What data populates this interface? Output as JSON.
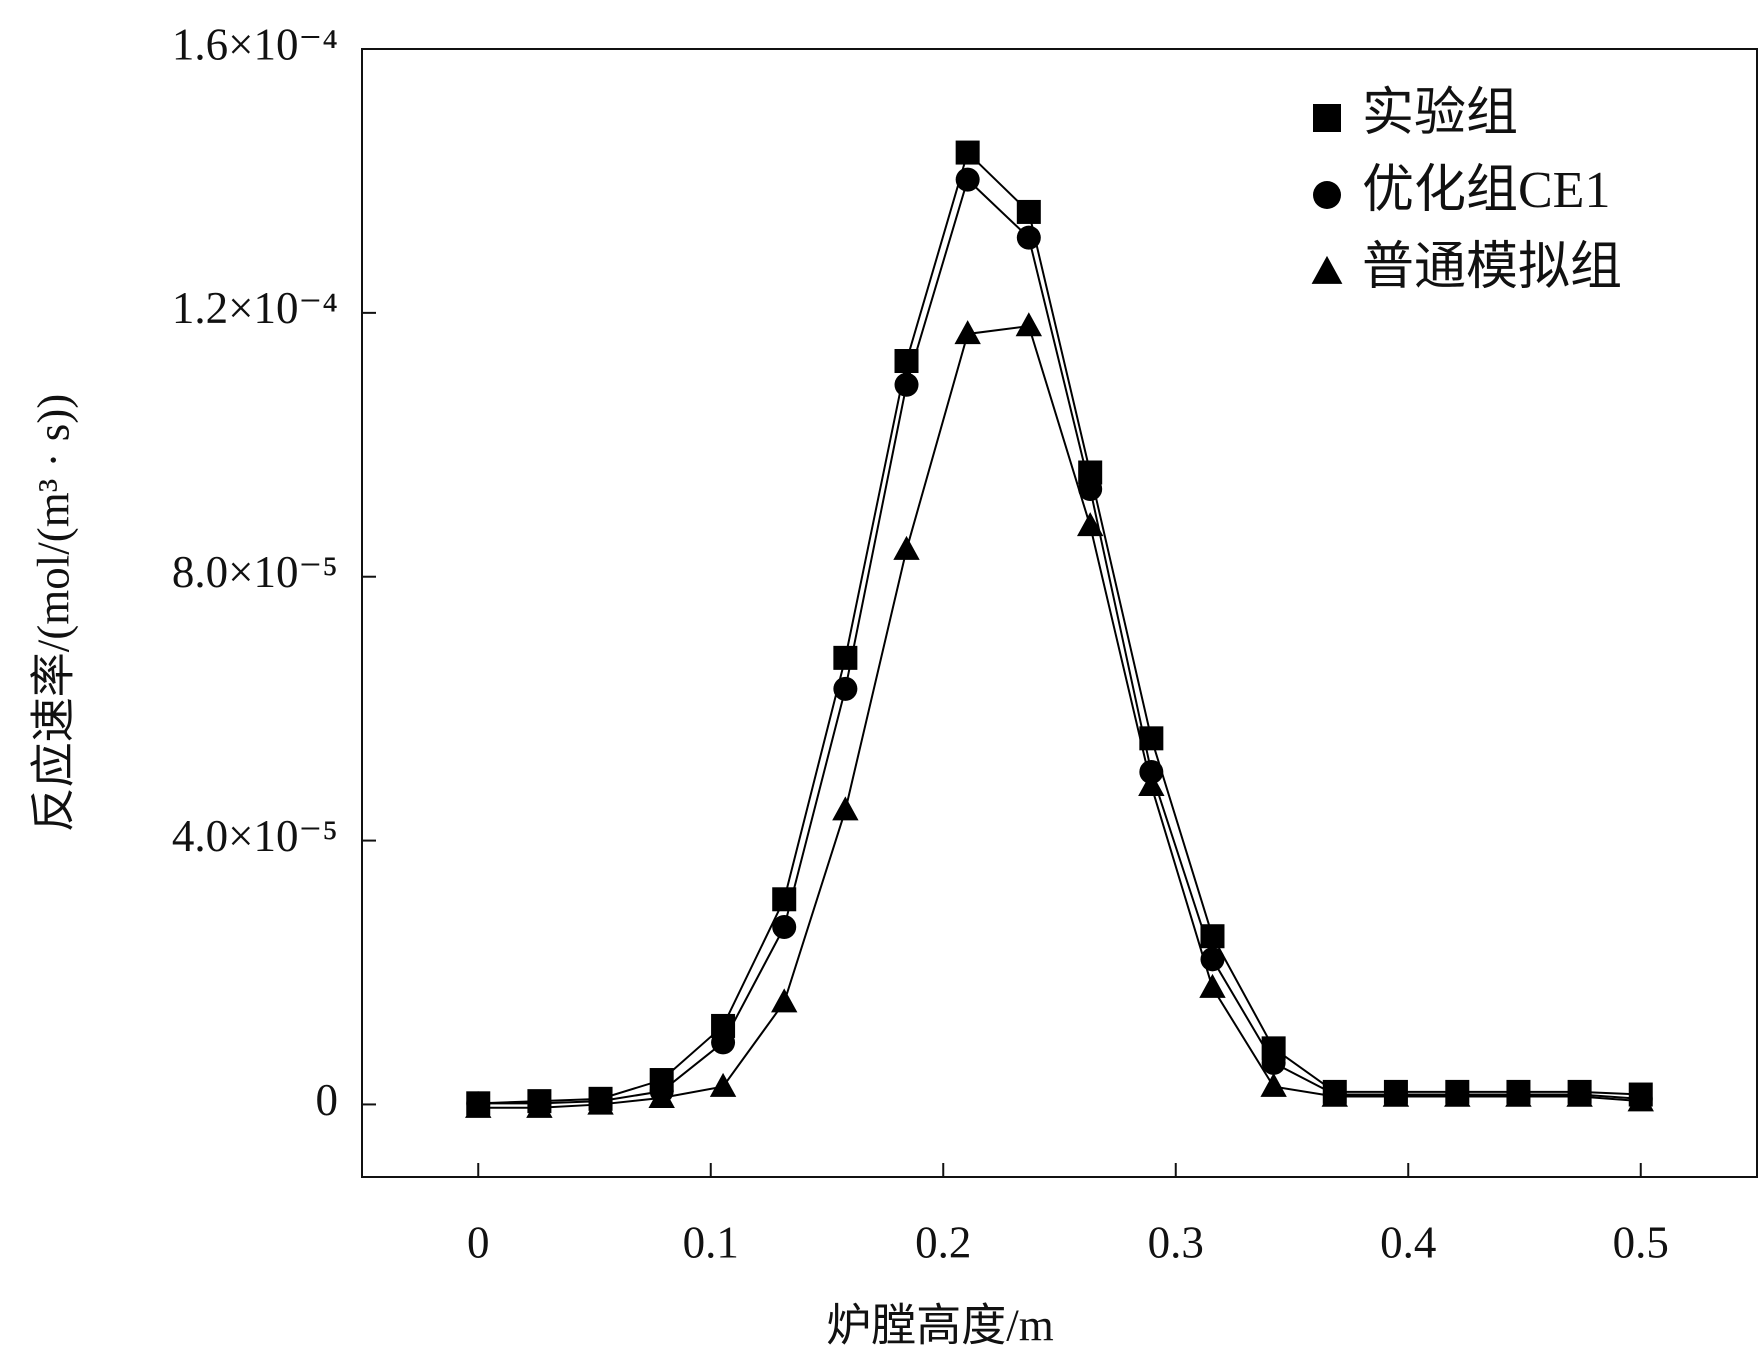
{
  "chart_data": {
    "type": "line",
    "x": [
      0,
      0.0263,
      0.0526,
      0.0789,
      0.1053,
      0.1316,
      0.1579,
      0.1842,
      0.2105,
      0.2368,
      0.2632,
      0.2895,
      0.3158,
      0.3421,
      0.3684,
      0.3947,
      0.4211,
      0.4474,
      0.4737,
      0.5
    ],
    "x_label": "炉膛高度/m",
    "y_label": "反应速率/(mol/(m³ · s))",
    "xlim": [
      -0.05,
      0.55
    ],
    "xticks": [
      0,
      0.1,
      0.2,
      0.3,
      0.4,
      0.5
    ],
    "ylim": [
      -1.1e-05,
      0.00016
    ],
    "yticks": [
      0,
      {
        "value": 4e-05,
        "label": "4.0×10⁻⁵"
      },
      {
        "value": 8e-05,
        "label": "8.0×10⁻⁵"
      },
      {
        "value": 0.00012,
        "label": "1.2×10⁻⁴"
      },
      {
        "value": 0.00016,
        "label": "1.6×10⁻⁴"
      }
    ],
    "legend_position": "upper right",
    "series": [
      {
        "name": "实验组",
        "color": "#000000",
        "marker": "square",
        "values": [
          1.7e-07,
          5e-07,
          8.5e-07,
          3.7e-06,
          1.19e-05,
          3.11e-05,
          6.77e-05,
          0.0001127,
          0.0001443,
          0.0001353,
          9.58e-05,
          5.55e-05,
          2.55e-05,
          8.5e-06,
          1.9e-06,
          1.9e-06,
          1.9e-06,
          1.9e-06,
          1.9e-06,
          1.5e-06
        ]
      },
      {
        "name": "优化组CE1",
        "color": "#000000",
        "marker": "circle",
        "values": [
          1.7e-07,
          1.7e-07,
          5e-07,
          2e-06,
          9.4e-06,
          2.69e-05,
          6.3e-05,
          0.0001091,
          0.0001402,
          0.0001314,
          9.33e-05,
          5.04e-05,
          2.2e-05,
          6.3e-06,
          1.5e-06,
          1.5e-06,
          1.5e-06,
          1.5e-06,
          1.5e-06,
          8.5e-07
        ]
      },
      {
        "name": "普通模拟组",
        "color": "#000000",
        "marker": "triangle",
        "values": [
          -5e-07,
          -5e-07,
          0,
          1e-06,
          2.7e-06,
          1.55e-05,
          4.46e-05,
          8.41e-05,
          0.0001168,
          0.000118,
          8.77e-05,
          4.83e-05,
          1.77e-05,
          2.7e-06,
          1.2e-06,
          1.2e-06,
          1.2e-06,
          1.2e-06,
          1.2e-06,
          5e-07
        ]
      }
    ]
  }
}
